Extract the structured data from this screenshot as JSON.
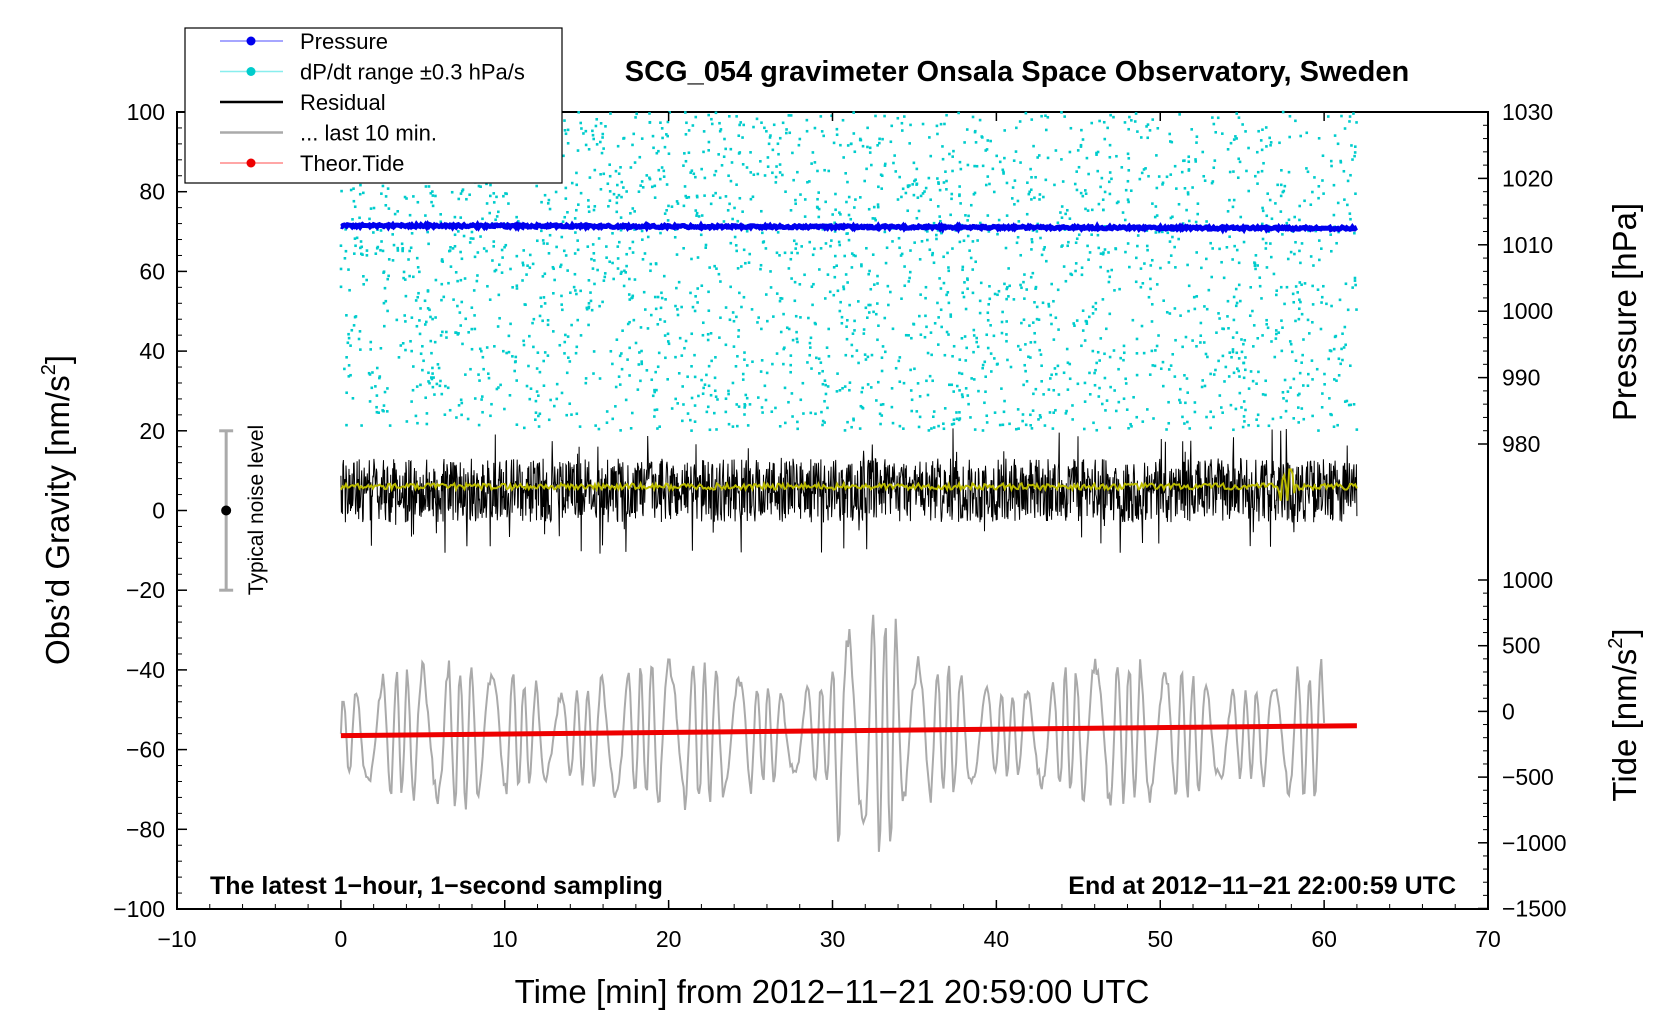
{
  "chart_data": {
    "type": "line",
    "title": "SCG_054 gravimeter Onsala Space Observatory, Sweden",
    "xlabel": "Time [min] from 2012−11−21 20:59:00 UTC",
    "ylabel_left": "Obs’d Gravity [nm/s",
    "ylabel_left_sup": "2",
    "ylabel_left_end": "]",
    "ylabel_pressure": "Pressure [hPa]",
    "ylabel_tide": "Tide [nm/s",
    "ylabel_tide_sup": "2",
    "ylabel_tide_end": "]",
    "xlim": [
      -10,
      70
    ],
    "ylim": [
      -100,
      100
    ],
    "x_ticks": [
      "−10",
      "0",
      "10",
      "20",
      "30",
      "40",
      "50",
      "60",
      "70"
    ],
    "y_ticks": [
      "100",
      "80",
      "60",
      "40",
      "20",
      "0",
      "−20",
      "−40",
      "−60",
      "−80",
      "−100"
    ],
    "pressure_ticks": [
      "1030",
      "1020",
      "1010",
      "1000",
      "990",
      "980"
    ],
    "tide_ticks": [
      "1000",
      "500",
      "0",
      "−500",
      "−1000",
      "−1500"
    ],
    "annotation_left": "The latest 1−hour, 1−second sampling",
    "annotation_right": "End at 2012−11−21 22:00:59 UTC",
    "noise_label": "Typical noise level",
    "noise_bar": {
      "x": -7,
      "center": 0,
      "half_range": 20
    },
    "legend": [
      {
        "label": "Pressure",
        "color": "#0000ee",
        "marker": true,
        "line_color": "#8888ff"
      },
      {
        "label": "dP/dt range ±0.3 hPa/s",
        "color": "#00cccc",
        "marker": true,
        "line_color": "#88eeee"
      },
      {
        "label": "Residual",
        "color": "#000000",
        "marker": false,
        "line_color": "#000000"
      },
      {
        "label": "... last 10 min.",
        "color": "#aaaaaa",
        "marker": false,
        "line_color": "#aaaaaa"
      },
      {
        "label": "Theor.Tide",
        "color": "#ee0000",
        "marker": true,
        "line_color": "#ff8888"
      }
    ],
    "series": [
      {
        "name": "Pressure",
        "color": "#0000ee",
        "x_range": [
          0,
          62
        ],
        "y_start": 71.5,
        "y_end": 70.8
      },
      {
        "name": "dP/dt range ±0.3 hPa/s",
        "color": "#00cccc",
        "x_range": [
          0,
          62
        ],
        "y_range": [
          20,
          100
        ]
      },
      {
        "name": "Residual",
        "color": "#000000",
        "x_range": [
          0,
          62
        ],
        "center": 0,
        "typical_amplitude": 8
      },
      {
        "name": "Residual smoothed",
        "color": "#bbbb00",
        "x_range": [
          0,
          62
        ],
        "y": 6
      },
      {
        "name": "... last 10 min.",
        "color": "#aaaaaa",
        "x_range": [
          0,
          60
        ],
        "center": -56,
        "amplitude": 20
      },
      {
        "name": "Theor.Tide",
        "color": "#ee0000",
        "x_range": [
          0,
          62
        ],
        "y_start": -56.5,
        "y_end": -54
      }
    ],
    "colors": {
      "pressure": "#0000ee",
      "dpdt": "#00cccc",
      "residual": "#000000",
      "smoothed": "#bbbb00",
      "last10": "#aaaaaa",
      "tide": "#ee0000"
    }
  }
}
